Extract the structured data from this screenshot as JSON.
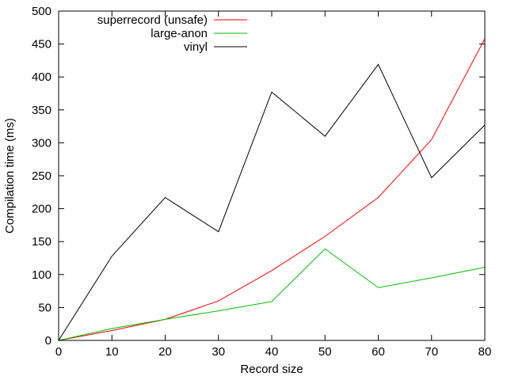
{
  "chart_data": {
    "type": "line",
    "title": "",
    "xlabel": "Record size",
    "ylabel": "Compilation time (ms)",
    "xlim": [
      0,
      80
    ],
    "ylim": [
      0,
      500
    ],
    "xticks": [
      0,
      10,
      20,
      30,
      40,
      50,
      60,
      70,
      80
    ],
    "yticks": [
      0,
      50,
      100,
      150,
      200,
      250,
      300,
      350,
      400,
      450,
      500
    ],
    "grid": false,
    "legend_position": "top-left",
    "x": [
      0,
      10,
      20,
      30,
      40,
      50,
      60,
      70,
      80
    ],
    "series": [
      {
        "name": "superrecord (unsafe)",
        "color": "#ff0000",
        "values": [
          0,
          15,
          32,
          60,
          106,
          158,
          217,
          305,
          458
        ]
      },
      {
        "name": "large-anon",
        "color": "#00c000",
        "values": [
          0,
          18,
          32,
          45,
          59,
          139,
          80,
          95,
          111
        ]
      },
      {
        "name": "vinyl",
        "color": "#000000",
        "values": [
          0,
          128,
          217,
          165,
          377,
          310,
          419,
          247,
          327
        ]
      }
    ]
  }
}
